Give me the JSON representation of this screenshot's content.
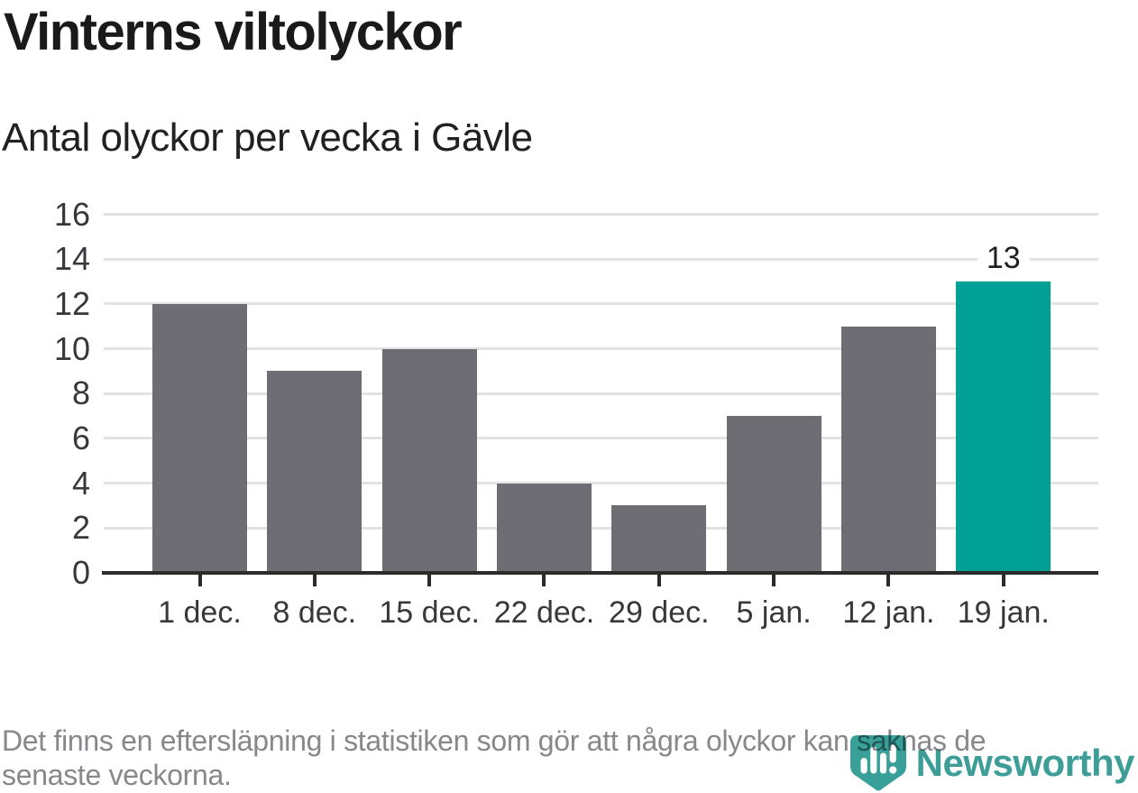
{
  "header": {
    "title": "Vinterns viltolyckor",
    "subtitle": "Antal olyckor per vecka i Gävle"
  },
  "chart_data": {
    "type": "bar",
    "title": "Vinterns viltolyckor",
    "subtitle": "Antal olyckor per vecka i Gävle",
    "categories": [
      "1 dec.",
      "8 dec.",
      "15 dec.",
      "22 dec.",
      "29 dec.",
      "5 jan.",
      "12 jan.",
      "19 jan."
    ],
    "values": [
      12,
      9,
      10,
      4,
      3,
      7,
      11,
      13
    ],
    "highlight_index": 7,
    "highlight_label": "13",
    "yticks": [
      0,
      2,
      4,
      6,
      8,
      10,
      12,
      14,
      16
    ],
    "ylim": [
      0,
      16
    ],
    "xlabel": "",
    "ylabel": "",
    "grid": true,
    "legend": "none",
    "bar_color": "#6d6d73",
    "highlight_color": "#00a096"
  },
  "footer": {
    "note_lines": [
      "Det finns en eftersläpning i statistiken som gör att några olyckor kan saknas de",
      "senaste veckorna."
    ],
    "logo_text": "Newsworthy"
  },
  "colors": {
    "bar": "#6d6d73",
    "highlight": "#00a096",
    "axis": "#2b2b2b",
    "grid": "#e2e2e4",
    "axis_label": "#38383c",
    "footer_text": "#87878c",
    "logo_teal": "#3c9e97"
  }
}
